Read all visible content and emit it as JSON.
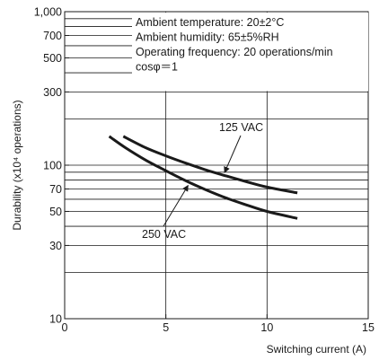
{
  "chart_data": {
    "type": "line",
    "title": "",
    "xlabel": "Switching current (A)",
    "ylabel": "Durability (x10⁴ operations)",
    "xlim": [
      0,
      15
    ],
    "ylim": [
      10,
      1000
    ],
    "yscale": "log",
    "grid": true,
    "x_ticks": [
      0,
      5,
      10,
      15
    ],
    "x_tick_labels": [
      "0",
      "5",
      "10",
      "15"
    ],
    "y_ticks": [
      10,
      30,
      50,
      70,
      100,
      300,
      500,
      700,
      1000
    ],
    "y_tick_labels": [
      "10",
      "30",
      "50",
      "70",
      "100",
      "300",
      "500",
      "700",
      "1,000"
    ],
    "y_gridlines": [
      20,
      30,
      40,
      50,
      60,
      70,
      80,
      90,
      100,
      200,
      300,
      400,
      500,
      600,
      700,
      800,
      900
    ],
    "x_gridlines": [
      5,
      10
    ],
    "conditions": [
      "Ambient temperature: 20±2°C",
      "Ambient humidity: 65±5%RH",
      "Operating frequency: 20 operations/min",
      "cosφ＝1"
    ],
    "series": [
      {
        "name": "125 VAC",
        "x": [
          2.9,
          4,
          5,
          6,
          7,
          8,
          9,
          10,
          11.5
        ],
        "y": [
          154,
          130,
          115,
          103,
          93,
          85,
          78,
          72,
          66
        ]
      },
      {
        "name": "250 VAC",
        "x": [
          2.2,
          3,
          4,
          5,
          6,
          7,
          8,
          9,
          10,
          11.5
        ],
        "y": [
          154,
          130,
          108,
          92,
          79,
          69,
          61,
          55,
          50,
          45
        ]
      }
    ],
    "annotations": [
      {
        "text": "125 VAC",
        "series": "125 VAC"
      },
      {
        "text": "250 VAC",
        "series": "250 VAC"
      }
    ]
  }
}
